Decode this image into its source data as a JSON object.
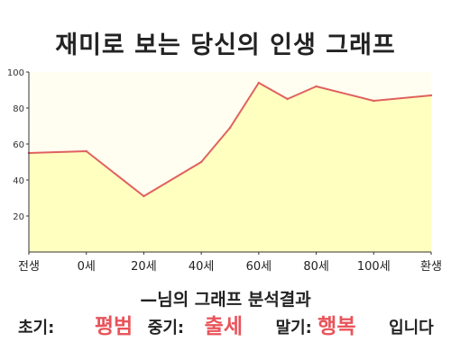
{
  "title": "재미로 보는 당신의 인생 그래프",
  "chart_data": {
    "type": "area",
    "title": "재미로 보는 당신의 인생 그래프",
    "xlabel": "",
    "ylabel": "",
    "x_ticks": [
      "전생",
      "0세",
      "20세",
      "40세",
      "60세",
      "80세",
      "100세",
      "환생"
    ],
    "y_ticks": [
      "20",
      "40",
      "60",
      "80",
      "100"
    ],
    "ylim": [
      0,
      100
    ],
    "grid": false,
    "points": [
      {
        "x": "전생",
        "y": 55
      },
      {
        "x": "0세",
        "y": 56
      },
      {
        "x": "20세",
        "y": 31
      },
      {
        "x": "40세",
        "y": 50
      },
      {
        "x": "50세",
        "y": 69
      },
      {
        "x": "60세",
        "y": 94
      },
      {
        "x": "70세",
        "y": 85
      },
      {
        "x": "80세",
        "y": 92
      },
      {
        "x": "100세",
        "y": 84
      },
      {
        "x": "환생",
        "y": 87
      }
    ],
    "colors": {
      "line": "#e0615f",
      "fill": "#ffffc0",
      "background": "#fffef0",
      "axis": "#333333"
    }
  },
  "result": {
    "title": "—님의 그래프 분석결과",
    "early_label": "초기:",
    "early_value": "평범",
    "mid_label": "중기:",
    "mid_value": "출세",
    "late_label": "말기:",
    "late_value": "행복",
    "suffix": "입니다"
  }
}
